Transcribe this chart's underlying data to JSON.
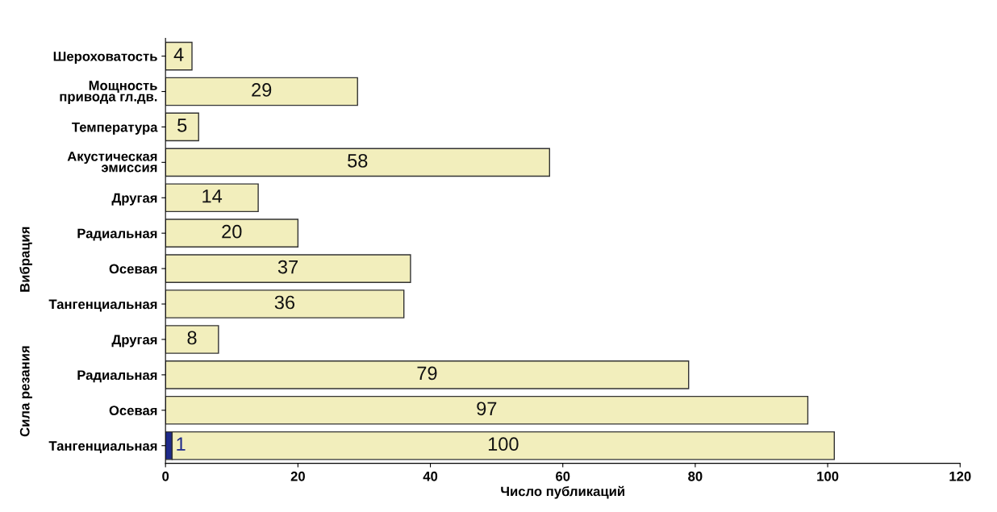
{
  "chart_data": {
    "type": "bar",
    "orientation": "horizontal",
    "stacked": true,
    "xlabel": "Число публикаций",
    "categories": [
      "Шероховатость",
      "Мощность\nпривода гл.дв.",
      "Температура",
      "Акустическая\nэмиссия",
      "Другая",
      "Радиальная",
      "Осевая",
      "Тангенциальная",
      "Другая",
      "Радиальная",
      "Осевая",
      "Тангенциальная"
    ],
    "series": [
      {
        "color": "#1f2a8a",
        "values": [
          null,
          null,
          null,
          null,
          null,
          null,
          null,
          null,
          null,
          null,
          null,
          1
        ]
      },
      {
        "color": "#f2eebc",
        "values": [
          4,
          29,
          5,
          58,
          14,
          20,
          37,
          36,
          8,
          79,
          97,
          100
        ]
      }
    ],
    "xlim": [
      0,
      120
    ],
    "xticks": [
      0,
      20,
      40,
      60,
      80,
      100,
      120
    ],
    "data_labels": true,
    "grid": false,
    "legend": false,
    "annotations": [
      "Сила резания",
      "Вибрация"
    ]
  }
}
